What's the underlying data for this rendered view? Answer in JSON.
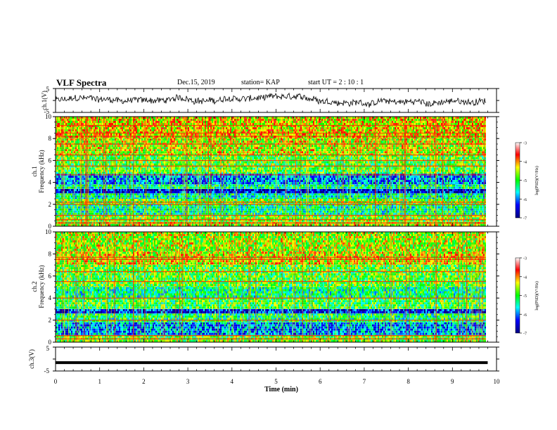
{
  "header": {
    "title": "VLF Spectra",
    "date": "Dec.15, 2019",
    "station": "station= KAP",
    "start_ut": "start  UT  =   2  : 10 : 1"
  },
  "chart_data": [
    {
      "type": "line",
      "panel": "ch1-waveform",
      "ylabel": "ch.1(V)",
      "ylim": [
        -5,
        5
      ],
      "yticks": [
        "5",
        "-5"
      ],
      "xlim": [
        0,
        10
      ],
      "note_series": "noisy waveform fluctuating roughly between -3 and +3 V",
      "series": [
        {
          "values_range": [
            -3,
            3
          ]
        }
      ]
    },
    {
      "type": "heatmap",
      "panel": "ch1-spectrogram",
      "ylabel_line1": "ch.1",
      "ylabel_line2": "Frequency (kHz)",
      "ylim": [
        0,
        10
      ],
      "yticks": [
        "0",
        "2",
        "4",
        "6",
        "8",
        "10"
      ],
      "xlim": [
        0,
        10
      ],
      "colorbar": {
        "label": "log(PSD)(V²/Hz)",
        "range": [
          -7,
          -3
        ],
        "ticks": [
          "-3",
          "-4",
          "-5",
          "-6",
          "-7"
        ],
        "colors": [
          "#000080",
          "#0000ff",
          "#00ffff",
          "#00ff00",
          "#ffff00",
          "#ff0000",
          "#ffffff"
        ]
      },
      "bands": [
        {
          "f": [
            0.0,
            0.4
          ],
          "level": -4.5
        },
        {
          "f": [
            0.4,
            1.0
          ],
          "level": -4.8
        },
        {
          "f": [
            1.0,
            2.0
          ],
          "level": -5.3
        },
        {
          "f": [
            2.0,
            2.5
          ],
          "level": -4.8
        },
        {
          "f": [
            2.5,
            3.0
          ],
          "level": -5.4
        },
        {
          "f": [
            3.0,
            3.4
          ],
          "level": -6.5
        },
        {
          "f": [
            3.4,
            3.8
          ],
          "level": -5.3
        },
        {
          "f": [
            3.8,
            4.8
          ],
          "level": -5.9
        },
        {
          "f": [
            4.8,
            6.5
          ],
          "level": -4.9
        },
        {
          "f": [
            6.5,
            8.0
          ],
          "level": -4.5
        },
        {
          "f": [
            8.0,
            10.0
          ],
          "level": -4.3
        }
      ],
      "lines_khz": [
        0.3,
        0.6,
        1.0,
        2.0,
        2.2,
        4.7,
        5.5,
        6.0,
        6.5,
        7.5,
        8.2,
        8.5,
        9.2
      ]
    },
    {
      "type": "heatmap",
      "panel": "ch2-spectrogram",
      "ylabel_line1": "ch.2",
      "ylabel_line2": "Frequency (kHz)",
      "ylim": [
        0,
        10
      ],
      "yticks": [
        "0",
        "2",
        "4",
        "6",
        "8",
        "10"
      ],
      "xlim": [
        0,
        10
      ],
      "colorbar": {
        "label": "log(PSD)(V²/Hz)",
        "range": [
          -7,
          -3
        ],
        "ticks": [
          "-3",
          "-4",
          "-5",
          "-6",
          "-7"
        ],
        "colors": [
          "#000080",
          "#0000ff",
          "#00ffff",
          "#00ff00",
          "#ffff00",
          "#ff0000",
          "#ffffff"
        ]
      },
      "bands": [
        {
          "f": [
            0.0,
            0.6
          ],
          "level": -4.8
        },
        {
          "f": [
            0.6,
            1.8
          ],
          "level": -5.9
        },
        {
          "f": [
            1.8,
            2.6
          ],
          "level": -5.2
        },
        {
          "f": [
            2.6,
            3.0
          ],
          "level": -6.4
        },
        {
          "f": [
            3.0,
            4.0
          ],
          "level": -5.0
        },
        {
          "f": [
            4.0,
            5.0
          ],
          "level": -5.3
        },
        {
          "f": [
            5.0,
            7.0
          ],
          "level": -4.9
        },
        {
          "f": [
            7.0,
            8.2
          ],
          "level": -4.4
        },
        {
          "f": [
            8.2,
            10.0
          ],
          "level": -4.6
        }
      ],
      "lines_khz": [
        0.3,
        0.6,
        2.0,
        4.0,
        5.5,
        6.4,
        7.5,
        7.7
      ]
    },
    {
      "type": "line",
      "panel": "ch3-waveform",
      "ylabel": "ch.3(V)",
      "ylim": [
        -5,
        5
      ],
      "yticks": [
        "5",
        "-5"
      ],
      "xlim": [
        0,
        10
      ],
      "series": [
        {
          "x": [
            0,
            9.8
          ],
          "values": [
            -1.5,
            -1.5
          ]
        }
      ]
    }
  ],
  "x_axis": {
    "label": "Time  (min)",
    "ticks": [
      "0",
      "1",
      "2",
      "3",
      "4",
      "5",
      "6",
      "7",
      "8",
      "9",
      "10"
    ]
  }
}
